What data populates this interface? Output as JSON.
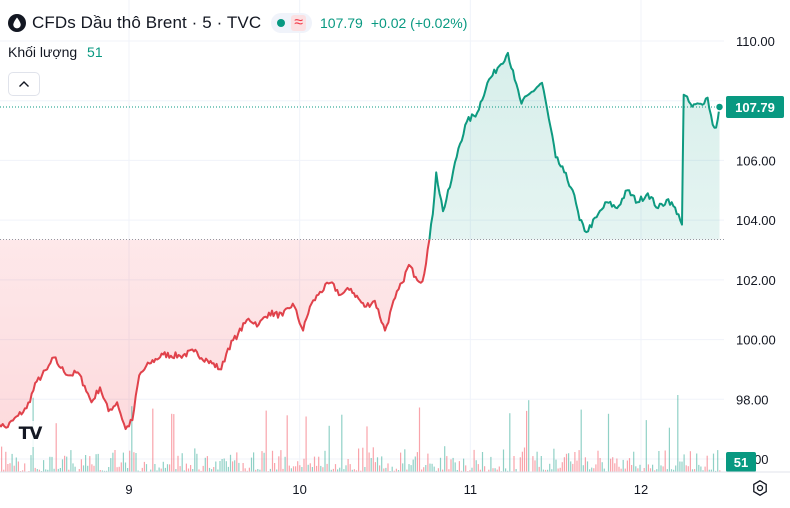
{
  "header": {
    "title": "CFDs Dầu thô Brent · 5 · TVC",
    "price": "107.79",
    "change": "+0.02 (+0.02%)"
  },
  "volume_legend": {
    "label": "Khối lượng",
    "value": "51"
  },
  "badges": {
    "price": "107.79",
    "volume": "51"
  },
  "colors": {
    "up": "#089981",
    "down": "#f23645",
    "line_down": "#e0424b",
    "line_up": "#0e9a80"
  },
  "chart_data": {
    "type": "line",
    "reference_price": 103.35,
    "last_price": 107.79,
    "ylim": [
      97.5,
      111.0
    ],
    "y_ticks": [
      {
        "value": 110,
        "label": "110.00"
      },
      {
        "value": 108,
        "label": "108.00"
      },
      {
        "value": 106,
        "label": "106.00"
      },
      {
        "value": 104,
        "label": "104.00"
      },
      {
        "value": 102,
        "label": "102.00"
      },
      {
        "value": 100,
        "label": "100.00"
      },
      {
        "value": 98,
        "label": "98.00"
      },
      {
        "value": 96,
        "label": "96.00"
      }
    ],
    "x_range": [
      8.215,
      12.467
    ],
    "x_ticks": [
      {
        "value": 9,
        "label": "9"
      },
      {
        "value": 10,
        "label": "10"
      },
      {
        "value": 11,
        "label": "11"
      },
      {
        "value": 12,
        "label": "12"
      }
    ],
    "price_anchors": [
      [
        8.21,
        97.3
      ],
      [
        8.28,
        97.05
      ],
      [
        8.35,
        97.45
      ],
      [
        8.4,
        97.7
      ],
      [
        8.46,
        98.6
      ],
      [
        8.52,
        99.0
      ],
      [
        8.56,
        99.4
      ],
      [
        8.6,
        99.05
      ],
      [
        8.65,
        98.8
      ],
      [
        8.7,
        98.9
      ],
      [
        8.74,
        98.45
      ],
      [
        8.78,
        97.9
      ],
      [
        8.83,
        98.4
      ],
      [
        8.88,
        97.6
      ],
      [
        8.93,
        97.9
      ],
      [
        8.98,
        97.0
      ],
      [
        9.02,
        97.3
      ],
      [
        9.06,
        98.8
      ],
      [
        9.12,
        99.2
      ],
      [
        9.2,
        99.5
      ],
      [
        9.3,
        99.45
      ],
      [
        9.38,
        99.6
      ],
      [
        9.46,
        99.3
      ],
      [
        9.54,
        99.0
      ],
      [
        9.58,
        99.7
      ],
      [
        9.64,
        100.2
      ],
      [
        9.7,
        100.7
      ],
      [
        9.76,
        100.5
      ],
      [
        9.82,
        100.9
      ],
      [
        9.9,
        100.8
      ],
      [
        9.96,
        101.2
      ],
      [
        10.02,
        100.3
      ],
      [
        10.06,
        101.1
      ],
      [
        10.12,
        101.6
      ],
      [
        10.18,
        101.9
      ],
      [
        10.24,
        101.5
      ],
      [
        10.3,
        101.7
      ],
      [
        10.38,
        101.1
      ],
      [
        10.44,
        101.3
      ],
      [
        10.5,
        100.3
      ],
      [
        10.56,
        101.4
      ],
      [
        10.6,
        101.9
      ],
      [
        10.64,
        102.5
      ],
      [
        10.68,
        102.1
      ],
      [
        10.72,
        101.95
      ],
      [
        10.76,
        103.35
      ],
      [
        10.78,
        104.2
      ],
      [
        10.8,
        105.6
      ],
      [
        10.84,
        104.3
      ],
      [
        10.88,
        105.1
      ],
      [
        10.93,
        106.4
      ],
      [
        10.98,
        107.3
      ],
      [
        11.04,
        107.6
      ],
      [
        11.1,
        108.6
      ],
      [
        11.16,
        109.1
      ],
      [
        11.22,
        109.6
      ],
      [
        11.26,
        108.7
      ],
      [
        11.3,
        107.9
      ],
      [
        11.36,
        108.3
      ],
      [
        11.42,
        108.6
      ],
      [
        11.46,
        107.4
      ],
      [
        11.5,
        106.1
      ],
      [
        11.55,
        105.6
      ],
      [
        11.6,
        105.0
      ],
      [
        11.64,
        104.0
      ],
      [
        11.68,
        103.6
      ],
      [
        11.74,
        104.1
      ],
      [
        11.8,
        104.6
      ],
      [
        11.86,
        104.4
      ],
      [
        11.92,
        105.0
      ],
      [
        11.98,
        104.6
      ],
      [
        12.04,
        104.9
      ],
      [
        12.1,
        104.4
      ],
      [
        12.16,
        104.7
      ],
      [
        12.22,
        104.2
      ],
      [
        12.24,
        103.85
      ],
      [
        12.25,
        108.2
      ],
      [
        12.3,
        107.8
      ],
      [
        12.35,
        107.9
      ],
      [
        12.39,
        108.1
      ],
      [
        12.42,
        107.2
      ],
      [
        12.44,
        107.1
      ],
      [
        12.46,
        107.79
      ]
    ],
    "volume_ymax": 100
  }
}
